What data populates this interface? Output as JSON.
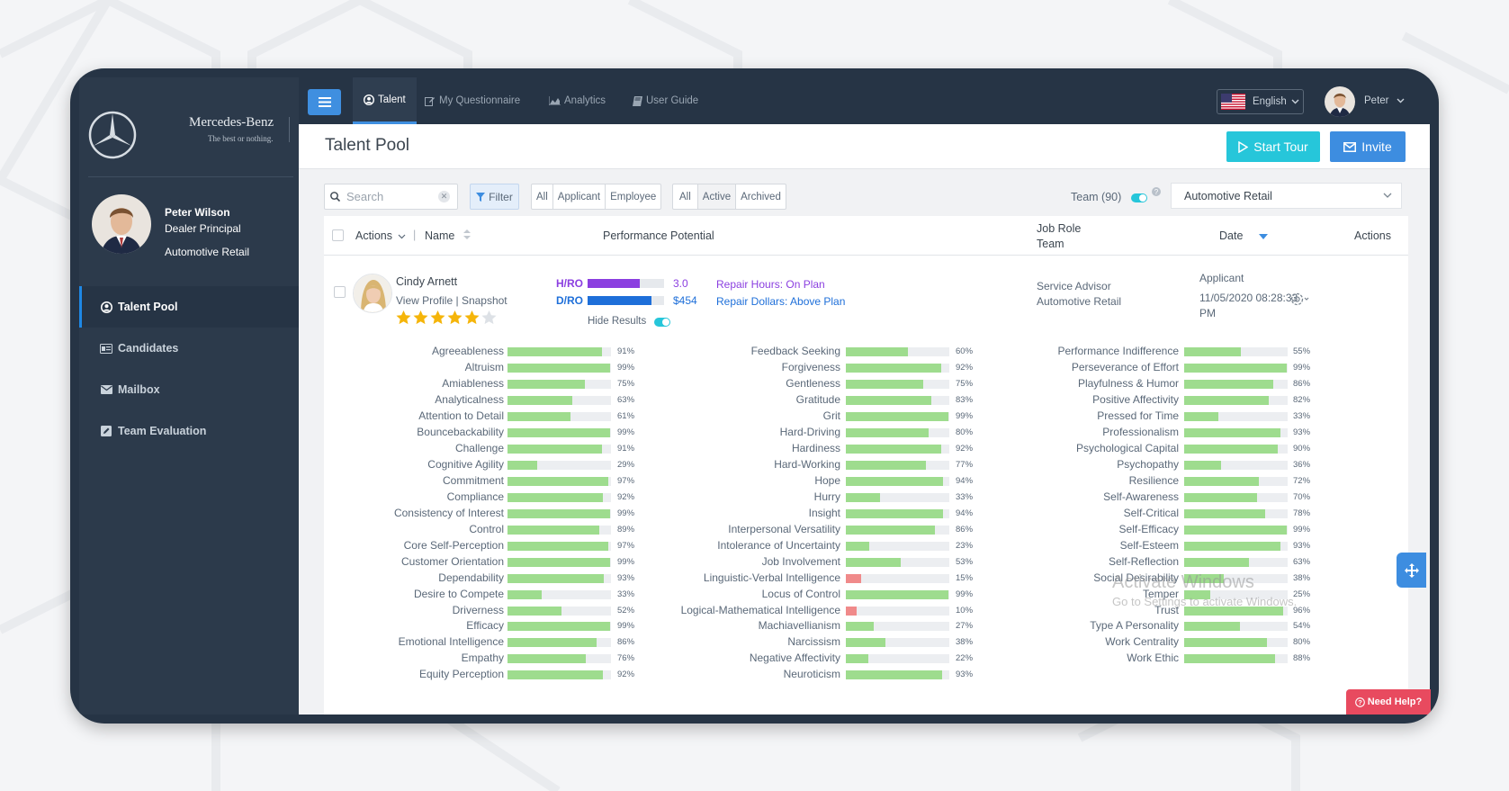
{
  "brand": {
    "name": "Mercedes-Benz",
    "tagline": "The best or nothing."
  },
  "sidebar": {
    "user": {
      "name": "Peter Wilson",
      "role": "Dealer Principal",
      "org": "Automotive Retail"
    },
    "items": [
      {
        "label": "Talent Pool",
        "icon": "user-circle-icon",
        "active": true
      },
      {
        "label": "Candidates",
        "icon": "id-card-icon",
        "active": false
      },
      {
        "label": "Mailbox",
        "icon": "envelope-icon",
        "active": false
      },
      {
        "label": "Team Evaluation",
        "icon": "edit-square-icon",
        "active": false
      }
    ]
  },
  "topbar": {
    "tabs": [
      {
        "label": "Talent",
        "icon": "user-circle-icon",
        "active": true
      },
      {
        "label": "My Questionnaire",
        "icon": "edit-icon",
        "active": false
      },
      {
        "label": "Analytics",
        "icon": "area-chart-icon",
        "active": false
      },
      {
        "label": "User Guide",
        "icon": "book-icon",
        "active": false
      }
    ],
    "language": "English",
    "user": "Peter"
  },
  "page": {
    "title": "Talent Pool",
    "start_tour": "Start Tour",
    "invite": "Invite"
  },
  "filters": {
    "search_placeholder": "Search",
    "filter_label": "Filter",
    "type_options": [
      "All",
      "Applicant",
      "Employee"
    ],
    "status_options": [
      "All",
      "Active",
      "Archived"
    ],
    "status_selected": "Active",
    "team_label": "Team (90)",
    "team_value": "Automotive Retail"
  },
  "table": {
    "headers": {
      "actions": "Actions",
      "name": "Name",
      "performance": "Performance Potential",
      "job_role": "Job Role",
      "team": "Team",
      "date": "Date",
      "actions_right": "Actions"
    }
  },
  "candidate": {
    "name": "Cindy Arnett",
    "view_profile": "View Profile",
    "snapshot": "Snapshot",
    "rating": 5,
    "rating_max": 6,
    "hro_label": "H/RO",
    "hro_value": "3.0",
    "hro_fill": 0.68,
    "dro_label": "D/RO",
    "dro_value": "$454",
    "dro_fill": 0.84,
    "repair_hours": "Repair Hours: On Plan",
    "repair_dollars": "Repair Dollars: Above Plan",
    "hide_results": "Hide Results",
    "job_role": "Service Advisor",
    "team": "Automotive Retail",
    "status": "Applicant",
    "date": "11/05/2020 08:28:33",
    "date_suffix": "PM"
  },
  "traits": [
    [
      {
        "name": "Agreeableness",
        "pct": 91
      },
      {
        "name": "Altruism",
        "pct": 99
      },
      {
        "name": "Amiableness",
        "pct": 75
      },
      {
        "name": "Analyticalness",
        "pct": 63
      },
      {
        "name": "Attention to Detail",
        "pct": 61
      },
      {
        "name": "Bouncebackability",
        "pct": 99
      },
      {
        "name": "Challenge",
        "pct": 91
      },
      {
        "name": "Cognitive Agility",
        "pct": 29
      },
      {
        "name": "Commitment",
        "pct": 97
      },
      {
        "name": "Compliance",
        "pct": 92
      },
      {
        "name": "Consistency of Interest",
        "pct": 99
      },
      {
        "name": "Control",
        "pct": 89
      },
      {
        "name": "Core Self-Perception",
        "pct": 97
      },
      {
        "name": "Customer Orientation",
        "pct": 99
      },
      {
        "name": "Dependability",
        "pct": 93
      },
      {
        "name": "Desire to Compete",
        "pct": 33
      },
      {
        "name": "Driverness",
        "pct": 52
      },
      {
        "name": "Efficacy",
        "pct": 99
      },
      {
        "name": "Emotional Intelligence",
        "pct": 86
      },
      {
        "name": "Empathy",
        "pct": 76
      },
      {
        "name": "Equity Perception",
        "pct": 92
      }
    ],
    [
      {
        "name": "Feedback Seeking",
        "pct": 60
      },
      {
        "name": "Forgiveness",
        "pct": 92
      },
      {
        "name": "Gentleness",
        "pct": 75
      },
      {
        "name": "Gratitude",
        "pct": 83
      },
      {
        "name": "Grit",
        "pct": 99
      },
      {
        "name": "Hard-Driving",
        "pct": 80
      },
      {
        "name": "Hardiness",
        "pct": 92
      },
      {
        "name": "Hard-Working",
        "pct": 77
      },
      {
        "name": "Hope",
        "pct": 94
      },
      {
        "name": "Hurry",
        "pct": 33
      },
      {
        "name": "Insight",
        "pct": 94
      },
      {
        "name": "Interpersonal Versatility",
        "pct": 86
      },
      {
        "name": "Intolerance of Uncertainty",
        "pct": 23
      },
      {
        "name": "Job Involvement",
        "pct": 53
      },
      {
        "name": "Linguistic-Verbal Intelligence",
        "pct": 15
      },
      {
        "name": "Locus of Control",
        "pct": 99
      },
      {
        "name": "Logical-Mathematical Intelligence",
        "pct": 10
      },
      {
        "name": "Machiavellianism",
        "pct": 27
      },
      {
        "name": "Narcissism",
        "pct": 38
      },
      {
        "name": "Negative Affectivity",
        "pct": 22
      },
      {
        "name": "Neuroticism",
        "pct": 93
      }
    ],
    [
      {
        "name": "Performance Indifference",
        "pct": 55
      },
      {
        "name": "Perseverance of Effort",
        "pct": 99
      },
      {
        "name": "Playfulness & Humor",
        "pct": 86
      },
      {
        "name": "Positive Affectivity",
        "pct": 82
      },
      {
        "name": "Pressed for Time",
        "pct": 33
      },
      {
        "name": "Professionalism",
        "pct": 93
      },
      {
        "name": "Psychological Capital",
        "pct": 90
      },
      {
        "name": "Psychopathy",
        "pct": 36
      },
      {
        "name": "Resilience",
        "pct": 72
      },
      {
        "name": "Self-Awareness",
        "pct": 70
      },
      {
        "name": "Self-Critical",
        "pct": 78
      },
      {
        "name": "Self-Efficacy",
        "pct": 99
      },
      {
        "name": "Self-Esteem",
        "pct": 93
      },
      {
        "name": "Self-Reflection",
        "pct": 63
      },
      {
        "name": "Social Desirability",
        "pct": 38
      },
      {
        "name": "Temper",
        "pct": 25
      },
      {
        "name": "Trust",
        "pct": 96
      },
      {
        "name": "Type A Personality",
        "pct": 54
      },
      {
        "name": "Work Centrality",
        "pct": 80
      },
      {
        "name": "Work Ethic",
        "pct": 88
      }
    ]
  ],
  "watermark": {
    "line1": "Activate Windows",
    "line2": "Go to Settings to activate Windows."
  },
  "need_help": "Need Help?",
  "colors": {
    "accent": "#3d8de0",
    "tour": "#26c6da",
    "trait_fill": "#9edc8e",
    "trait_low": "#f08a8a",
    "hro": "#8b3fe0",
    "dro": "#1e6fd9",
    "help": "#e84a5f"
  }
}
